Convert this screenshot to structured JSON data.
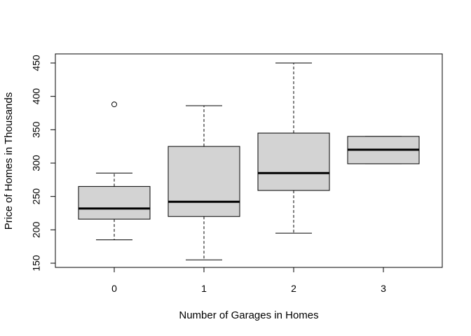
{
  "chart_data": {
    "type": "box",
    "title": "",
    "xlabel": "Number of Garages in Homes",
    "ylabel": "Price of Homes in Thousands",
    "categories": [
      "0",
      "1",
      "2",
      "3"
    ],
    "ylim": [
      145,
      457
    ],
    "yticks": [
      150,
      200,
      250,
      300,
      350,
      400,
      450
    ],
    "grid": false,
    "legend": "none",
    "box_fill": "#d3d3d3",
    "line_color": "#000000",
    "boxes": [
      {
        "category": "0",
        "whisker_low": 185,
        "q1": 216,
        "median": 232,
        "q3": 265,
        "whisker_high": 285,
        "outliers": [
          388
        ]
      },
      {
        "category": "1",
        "whisker_low": 155,
        "q1": 220,
        "median": 242,
        "q3": 325,
        "whisker_high": 386,
        "outliers": []
      },
      {
        "category": "2",
        "whisker_low": 195,
        "q1": 259,
        "median": 285,
        "q3": 345,
        "whisker_high": 450,
        "outliers": []
      },
      {
        "category": "3",
        "whisker_low": 299,
        "q1": 299,
        "median": 320,
        "q3": 340,
        "whisker_high": 340,
        "outliers": []
      }
    ]
  }
}
